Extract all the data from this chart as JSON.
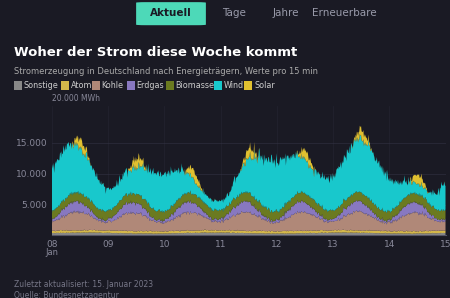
{
  "title": "Woher der Strom diese Woche kommt",
  "subtitle": "Stromerzeugung in Deutschland nach Energieträgern, Werte pro 15 min",
  "footer1": "Zuletzt aktualisiert: 15. Januar 2023",
  "footer2": "Quelle: Bundesnetzagentur",
  "nav_tabs": [
    "Aktuell",
    "Tage",
    "Jahre",
    "Erneuerbare"
  ],
  "active_tab": "Aktuell",
  "bg_color": "#1a1a24",
  "text_color_title": "#ffffff",
  "text_color_sub": "#aaaaaa",
  "text_color_footer": "#777788",
  "text_color_tick": "#888899",
  "active_tab_color": "#4dd9b8",
  "active_tab_text": "#1a1a24",
  "inactive_tab_text": "#999aaa",
  "grid_color": "#333344",
  "colors": {
    "Sonstige": "#888888",
    "Atom": "#d4b84a",
    "Kohle": "#b08878",
    "Erdgas": "#8878c0",
    "Biomasse": "#6b7a20",
    "Wind": "#18c8cc",
    "Solar": "#e0c030"
  },
  "legend_order": [
    "Sonstige",
    "Atom",
    "Kohle",
    "Erdgas",
    "Biomasse",
    "Wind",
    "Solar"
  ],
  "n_points": 672
}
